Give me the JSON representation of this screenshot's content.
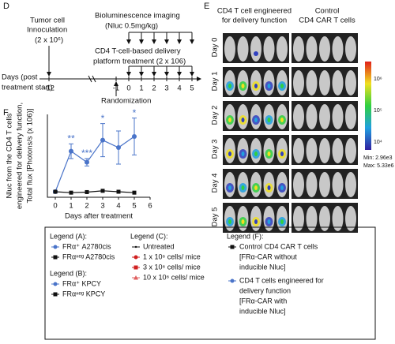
{
  "panel_labels": [
    "D",
    "E",
    "F"
  ],
  "timeline": {
    "imaging_title": "Bioluminescence imaging",
    "imaging_dose": "(Nluc 0.5mg/kg)",
    "inoculation": "Tumor cell",
    "inoculation_2": "Innoculation",
    "inoculation_dose": "(2 x 10⁶)",
    "treatment": "CD4 T-cell-based delivery",
    "treatment_2": "platform treatment (2 x 106)",
    "days_label": "Days (post",
    "days_label_2": "treatment start)",
    "randomization": "Randomization",
    "day_ticks": [
      "-12",
      "-1",
      "0",
      "1",
      "2",
      "3",
      "4",
      "5"
    ]
  },
  "imaging": {
    "group_1": [
      "CD4 T cell engineered",
      "for delivery function"
    ],
    "group_2": [
      "Control",
      "CD4 CAR T cells"
    ],
    "rows": [
      "Day 0",
      "Day 1",
      "Day 2",
      "Day 3",
      "Day 4",
      "Day 5"
    ],
    "colorbar_ticks": [
      "10⁶",
      "10⁵",
      "10⁴"
    ],
    "min": "Min: 2.96e3",
    "max": "Max: 5.33e6"
  },
  "chart_data": {
    "type": "line",
    "y_label": [
      "Nluc from the CD4 T cells",
      "engineered for delivery function,",
      "Total flux [Photons/s (x 106)]"
    ],
    "x_label": "Days after treatment",
    "x": [
      0,
      1,
      2,
      3,
      4,
      5
    ],
    "xlim": [
      -0.5,
      6
    ],
    "xticks": [
      0,
      1,
      2,
      3,
      4,
      5,
      6
    ],
    "ylim": [
      0,
      4.5
    ],
    "series": [
      {
        "name": "CD4 T cells engineered for delivery function",
        "color": "#4a74c9",
        "marker": "circle",
        "values": [
          0.3,
          2.5,
          1.9,
          3.1,
          2.7,
          3.3
        ],
        "errors": [
          0.05,
          0.4,
          0.2,
          0.9,
          0.9,
          1.0
        ]
      },
      {
        "name": "Control CD4 CAR T cells",
        "color": "#111111",
        "marker": "square",
        "values": [
          0.3,
          0.25,
          0.28,
          0.35,
          0.3,
          0.25
        ]
      }
    ],
    "annotations": [
      {
        "x": 1,
        "text": "**"
      },
      {
        "x": 2,
        "text": "***"
      },
      {
        "x": 3,
        "text": "*"
      },
      {
        "x": 5,
        "text": "*"
      }
    ]
  },
  "legend": {
    "a_title": "Legend (A):",
    "a_items": [
      "FRα⁺ A2780cis",
      "FRαⁿᵉᵍ A2780cis"
    ],
    "b_title": "Legend (B):",
    "b_items": [
      "FRα⁺ KPCY",
      "FRαⁿᵉᵍ KPCY"
    ],
    "c_title": "Legend (C):",
    "c_items": [
      "Untreated",
      "1 x 10⁶ cells/ mice",
      "3 x 10⁶ cells/ mice",
      "10 x 10⁶ cells/ mice"
    ],
    "f_title": "Legend (F):",
    "f_item_1": [
      "Control CD4 CAR T cells",
      "[FRα-CAR without",
      "inducible Nluc]"
    ],
    "f_item_2": [
      "CD4 T cells engineered for",
      "delivery function",
      "[FRα-CAR with",
      "inducible Nluc]"
    ]
  }
}
